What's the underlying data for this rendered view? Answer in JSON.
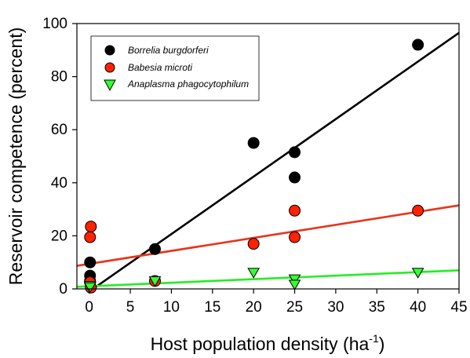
{
  "chart_data": {
    "type": "scatter",
    "xlabel": "Host population density (ha",
    "xlabel_superscript": "-1",
    "xlabel_suffix": ")",
    "ylabel": "Reservoir competence (percent)",
    "xlim": [
      -1.5,
      45
    ],
    "ylim": [
      0,
      100
    ],
    "x_ticks": [
      0,
      5,
      10,
      15,
      20,
      25,
      30,
      35,
      40,
      45
    ],
    "y_ticks": [
      0,
      20,
      40,
      60,
      80,
      100
    ],
    "x_tick_labels": [
      "0",
      "5",
      "10",
      "15",
      "20",
      "25",
      "30",
      "35",
      "40",
      "45"
    ],
    "y_tick_labels": [
      "0",
      "20",
      "40",
      "60",
      "80",
      "100"
    ],
    "legend_position": "top-left",
    "series": [
      {
        "name": "Borrelia burgdorferi",
        "marker": "circle",
        "color": "#000000",
        "line_color": "#000000",
        "x": [
          0.1,
          0.1,
          0.1,
          8,
          20,
          25,
          25,
          40
        ],
        "y": [
          10,
          5,
          3,
          15,
          55,
          51.5,
          42,
          92
        ],
        "fit": {
          "x": [
            0,
            45
          ],
          "y": [
            -1,
            96.5
          ]
        }
      },
      {
        "name": "Babesia microti",
        "marker": "circle",
        "color": "#ff2200",
        "line_color": "#e8341c",
        "x": [
          0.2,
          0.1,
          0.1,
          0.2,
          8,
          20,
          25,
          25,
          40
        ],
        "y": [
          23.5,
          19.5,
          2.5,
          0.5,
          3,
          17,
          29.5,
          19.5,
          29.5
        ],
        "fit": {
          "x": [
            -1.5,
            45
          ],
          "y": [
            8.7,
            31.5
          ]
        }
      },
      {
        "name": "Anaplasma phagocytophilum",
        "marker": "triangle-down",
        "color": "#33ff33",
        "line_color": "#22ee22",
        "x": [
          0.1,
          0.1,
          8,
          20,
          25,
          25,
          40
        ],
        "y": [
          1,
          0.5,
          2.8,
          6,
          3.5,
          1.5,
          6
        ],
        "fit": {
          "x": [
            -1.5,
            45
          ],
          "y": [
            0.8,
            7
          ]
        }
      }
    ]
  }
}
